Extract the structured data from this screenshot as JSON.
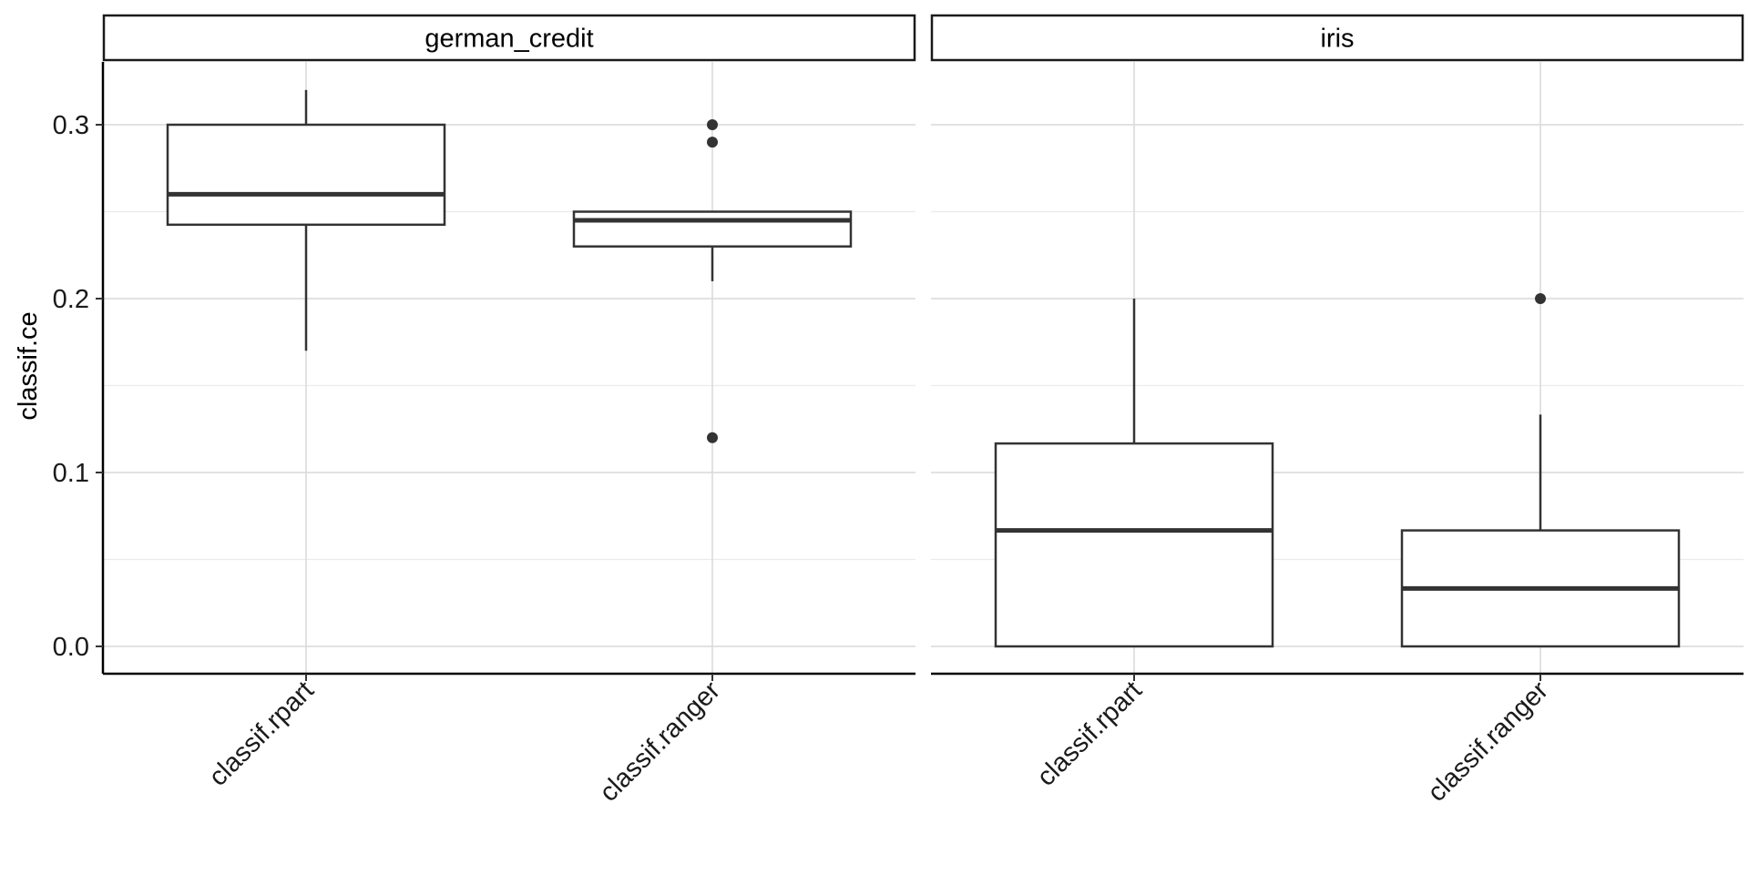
{
  "chart_data": {
    "type": "boxplot",
    "ylabel": "classif.ce",
    "ylim": [
      -0.016,
      0.335
    ],
    "y_ticks": [
      "0.0",
      "0.1",
      "0.2",
      "0.3"
    ],
    "y_tick_values": [
      0.0,
      0.1,
      0.2,
      0.3
    ],
    "grid": true,
    "panels": [
      {
        "strip": "german_credit",
        "categories": [
          "classif.rpart",
          "classif.ranger"
        ],
        "boxes": [
          {
            "category": "classif.rpart",
            "whisker_low": 0.17,
            "q1": 0.2425,
            "median": 0.26,
            "q3": 0.3,
            "whisker_high": 0.32,
            "outliers": []
          },
          {
            "category": "classif.ranger",
            "whisker_low": 0.21,
            "q1": 0.23,
            "median": 0.245,
            "q3": 0.25,
            "whisker_high": 0.25,
            "outliers": [
              0.3,
              0.29,
              0.12
            ]
          }
        ]
      },
      {
        "strip": "iris",
        "categories": [
          "classif.rpart",
          "classif.ranger"
        ],
        "boxes": [
          {
            "category": "classif.rpart",
            "whisker_low": 0.0,
            "q1": 0.0,
            "median": 0.0667,
            "q3": 0.1167,
            "whisker_high": 0.2,
            "outliers": []
          },
          {
            "category": "classif.ranger",
            "whisker_low": 0.0,
            "q1": 0.0,
            "median": 0.0333,
            "q3": 0.0667,
            "whisker_high": 0.1333,
            "outliers": [
              0.2
            ]
          }
        ]
      }
    ]
  }
}
